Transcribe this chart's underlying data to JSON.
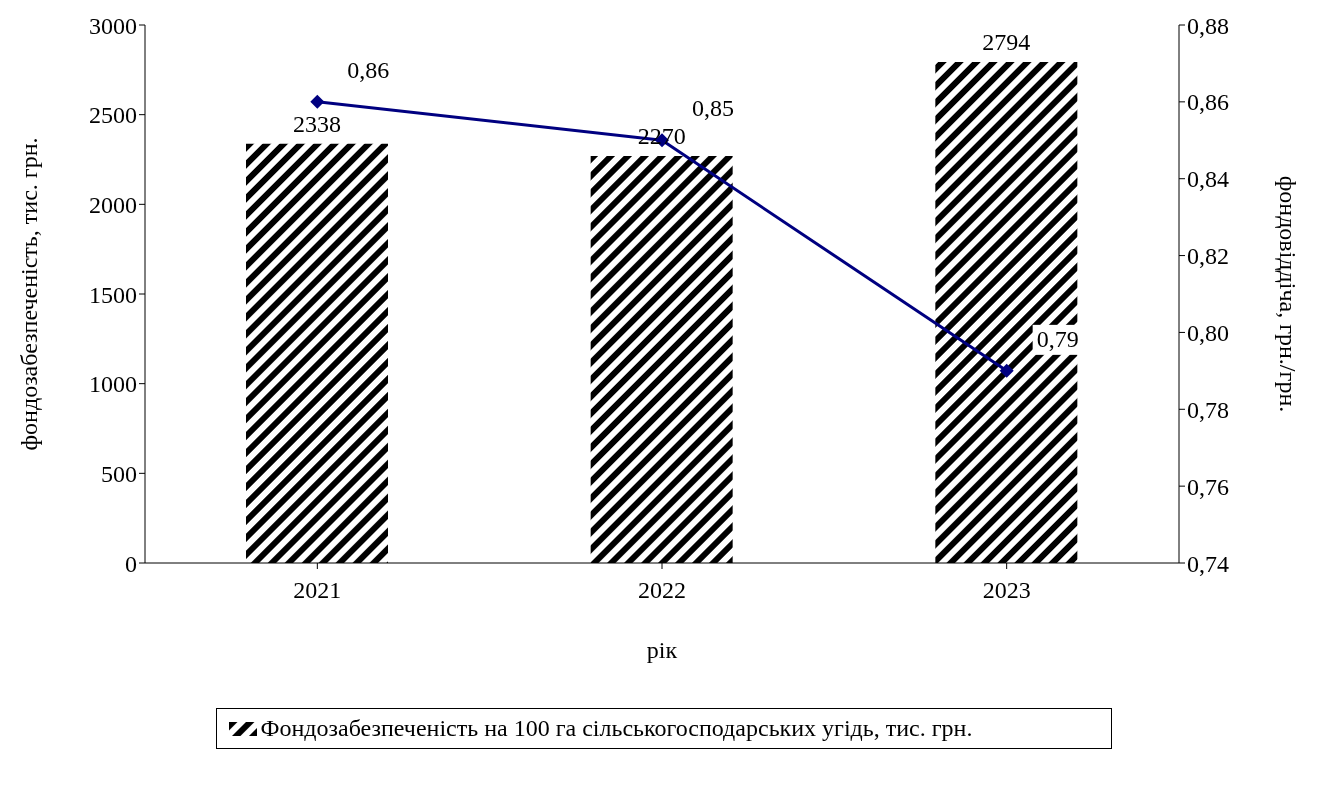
{
  "chart_data": {
    "type": "bar",
    "xlabel": "рік",
    "ylabel": "фондозабезпеченість, тис. грн.",
    "y2label": "фондовіддіча, грн./грн.",
    "categories": [
      "2021",
      "2022",
      "2023"
    ],
    "series": [
      {
        "name": "Фондозабезпеченість на 100 га сільськогосподарських угідь, тис. грн.",
        "color": "#000000",
        "values": [
          2338,
          2270,
          2794
        ],
        "value_labels": [
          "2338",
          "2270",
          "2794"
        ]
      },
      {
        "type": "line",
        "axis": "y2",
        "color": "#000080",
        "values": [
          0.86,
          0.85,
          0.79
        ],
        "value_labels": [
          "0,86",
          "0,85",
          "0,79"
        ],
        "marker": "diamond"
      }
    ],
    "ylim": [
      0,
      3000
    ],
    "yticks": [
      0,
      500,
      1000,
      1500,
      2000,
      2500,
      3000
    ],
    "y2lim": [
      0.74,
      0.88
    ],
    "y2ticks": [
      {
        "value": 0.74,
        "label": "0,74"
      },
      {
        "value": 0.76,
        "label": "0,76"
      },
      {
        "value": 0.78,
        "label": "0,78"
      },
      {
        "value": 0.8,
        "label": "0,80"
      },
      {
        "value": 0.82,
        "label": "0,82"
      },
      {
        "value": 0.84,
        "label": "0,84"
      },
      {
        "value": 0.86,
        "label": "0,86"
      },
      {
        "value": 0.88,
        "label": "0,88"
      }
    ],
    "grid": false,
    "legend": "bottom"
  }
}
